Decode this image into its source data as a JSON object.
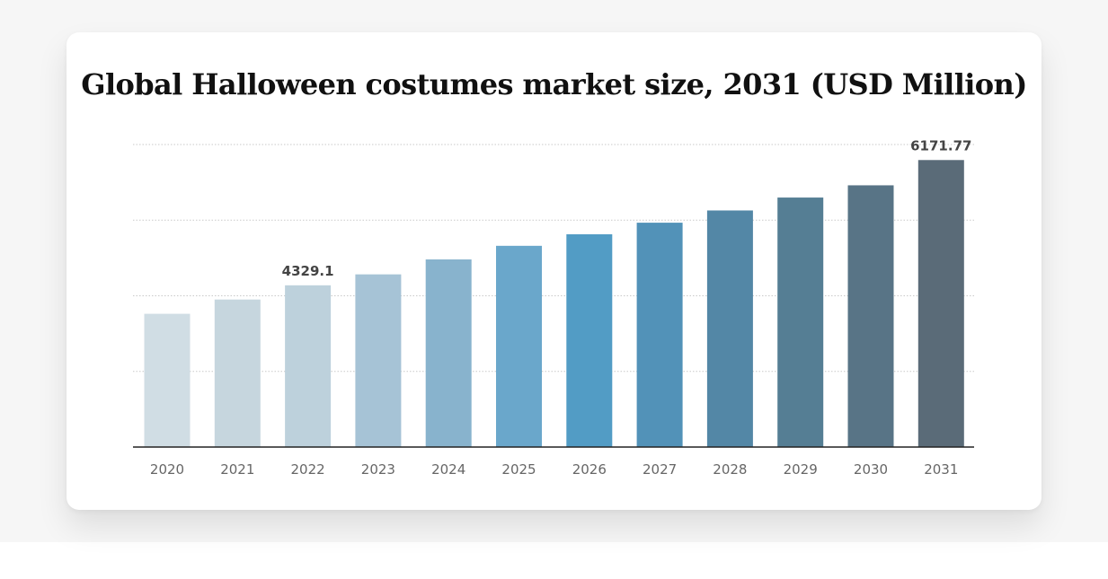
{
  "chart_data": {
    "type": "bar",
    "title": "Global Halloween costumes market size, 2031 (USD Million)",
    "xlabel": "",
    "ylabel": "",
    "categories": [
      "2020",
      "2021",
      "2022",
      "2023",
      "2024",
      "2025",
      "2026",
      "2027",
      "2028",
      "2029",
      "2030",
      "2031"
    ],
    "values": [
      3910,
      4120,
      4329.1,
      4490,
      4710,
      4910,
      5080,
      5250,
      5430,
      5620,
      5800,
      6171.77
    ],
    "data_labels": [
      {
        "category": "2022",
        "text": "4329.1"
      },
      {
        "category": "2031",
        "text": "6171.77"
      }
    ],
    "colors": [
      "#d0dde4",
      "#c6d6de",
      "#bdd1dc",
      "#a6c3d6",
      "#88b3cd",
      "#6aa7cb",
      "#529cc5",
      "#5292b8",
      "#5387a6",
      "#557e94",
      "#587486",
      "#5a6b78"
    ],
    "ylim": [
      1950,
      6400
    ],
    "grid": true,
    "legend": "none"
  }
}
